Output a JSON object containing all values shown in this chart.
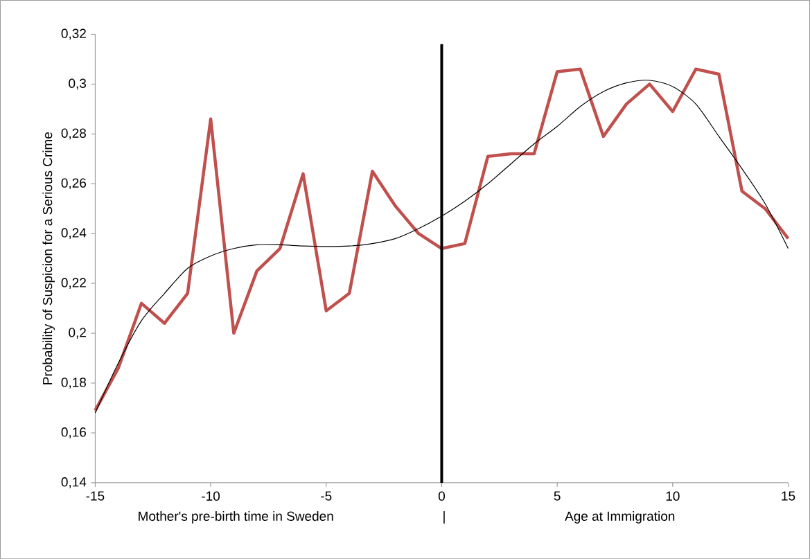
{
  "chart_data": {
    "type": "line",
    "ylabel": "Probability of Suspicion for a Serious Crime",
    "x": [
      -15,
      -14,
      -13,
      -12,
      -11,
      -10,
      -9,
      -8,
      -7,
      -6,
      -5,
      -4,
      -3,
      -2,
      -1,
      0,
      1,
      2,
      3,
      4,
      5,
      6,
      7,
      8,
      9,
      10,
      11,
      12,
      13,
      14,
      15
    ],
    "series": [
      {
        "color": "#c0504d",
        "values": [
          0.169,
          0.186,
          0.212,
          0.204,
          0.216,
          0.286,
          0.2,
          0.225,
          0.234,
          0.264,
          0.209,
          0.216,
          0.265,
          0.251,
          0.24,
          0.234,
          0.236,
          0.271,
          0.272,
          0.272,
          0.305,
          0.306,
          0.279,
          0.292,
          0.3,
          0.289,
          0.306,
          0.304,
          0.257,
          0.25,
          0.238
        ]
      },
      {
        "color": "#000000",
        "values": [
          0.168,
          0.188,
          0.205,
          0.216,
          0.226,
          0.231,
          0.234,
          0.2355,
          0.2355,
          0.235,
          0.2348,
          0.235,
          0.236,
          0.238,
          0.242,
          0.247,
          0.253,
          0.26,
          0.268,
          0.276,
          0.283,
          0.291,
          0.297,
          0.3005,
          0.3015,
          0.299,
          0.292,
          0.279,
          0.266,
          0.252,
          0.234
        ]
      }
    ],
    "xlim": [
      -15,
      15
    ],
    "xticks": [
      -15,
      -10,
      -5,
      0,
      5,
      10,
      15
    ],
    "ylim": [
      0.14,
      0.32
    ],
    "yticks": [
      {
        "value": 0.14,
        "label": "0,14"
      },
      {
        "value": 0.16,
        "label": "0,16"
      },
      {
        "value": 0.18,
        "label": "0,18"
      },
      {
        "value": 0.2,
        "label": "0,2"
      },
      {
        "value": 0.22,
        "label": "0,22"
      },
      {
        "value": 0.24,
        "label": "0,24"
      },
      {
        "value": 0.26,
        "label": "0,26"
      },
      {
        "value": 0.28,
        "label": "0,28"
      },
      {
        "value": 0.3,
        "label": "0,3"
      },
      {
        "value": 0.32,
        "label": "0,32"
      }
    ],
    "ref_lines": [
      {
        "axis": "x",
        "value": 0,
        "color": "#000000"
      }
    ],
    "annotations": [
      "Mother's pre-birth time in Sweden",
      "|",
      "Age at Immigration"
    ],
    "grid": false,
    "marker": "none",
    "line_style": "solid"
  }
}
